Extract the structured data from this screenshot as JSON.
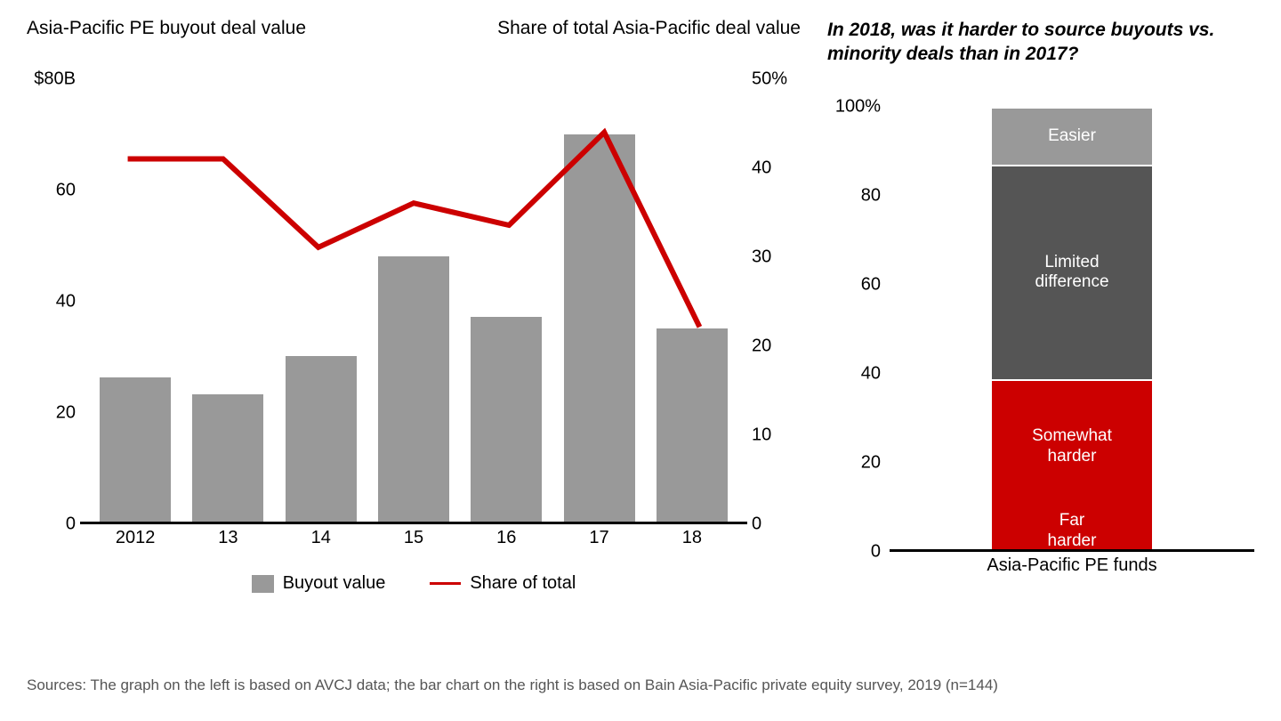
{
  "left_chart": {
    "title_left": "Asia-Pacific PE buyout deal value",
    "title_right": "Share of total Asia-Pacific deal value",
    "type": "bar_line_dual_axis",
    "categories": [
      "2012",
      "13",
      "14",
      "15",
      "16",
      "17",
      "18"
    ],
    "bar_values": [
      26,
      23,
      30,
      48,
      37,
      70,
      35
    ],
    "bar_color": "#999999",
    "bar_ylim": [
      0,
      80
    ],
    "bar_yticks": [
      0,
      20,
      40,
      60
    ],
    "bar_ytick_top_label": "$80B",
    "line_values": [
      41,
      41,
      31,
      36,
      33.5,
      44,
      22
    ],
    "line_color": "#cc0000",
    "line_width": 3,
    "line_ylim": [
      0,
      50
    ],
    "line_yticks": [
      0,
      10,
      20,
      30,
      40
    ],
    "line_ytick_top_label": "50%",
    "x_axis_color": "#000000",
    "label_fontsize": 20,
    "background_color": "#ffffff",
    "legend": {
      "bar_label": "Buyout value",
      "line_label": "Share of total"
    }
  },
  "right_chart": {
    "title": "In 2018, was it harder to source buyouts vs. minority deals than in 2017?",
    "type": "stacked_bar_100",
    "ylim": [
      0,
      100
    ],
    "yticks": [
      0,
      20,
      40,
      60,
      80
    ],
    "ytick_top_label": "100%",
    "x_label": "Asia-Pacific PE funds",
    "segments": [
      {
        "label": "Far harder",
        "value": 8,
        "color": "#cc0000",
        "text_color": "#ffffff"
      },
      {
        "label": "Somewhat harder",
        "value": 30,
        "color": "#cc0000",
        "text_color": "#ffffff"
      },
      {
        "label": "Limited difference",
        "value": 48,
        "color": "#555555",
        "text_color": "#ffffff"
      },
      {
        "label": "Easier",
        "value": 13,
        "color": "#999999",
        "text_color": "#ffffff"
      }
    ],
    "label_fontsize": 20,
    "segment_fontsize": 19,
    "x_axis_color": "#000000"
  },
  "sources_text": "Sources: The graph on the left is based on AVCJ data; the bar chart on the right is based on Bain Asia-Pacific private equity survey, 2019 (n=144)"
}
